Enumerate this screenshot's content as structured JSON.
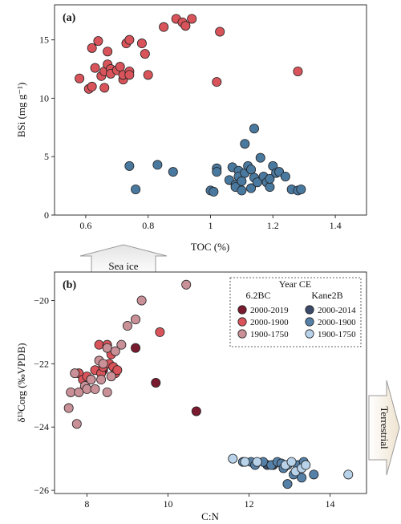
{
  "chart_data": [
    {
      "type": "scatter",
      "panel_label": "(a)",
      "xlabel": "TOC (%)",
      "ylabel": "BSi (mg g⁻¹)",
      "xlim": [
        0.5,
        1.5
      ],
      "ylim": [
        0,
        18
      ],
      "xticks": [
        "0.6",
        "0.8",
        "1",
        "1.2",
        "1.4"
      ],
      "yticks": [
        "0",
        "5",
        "10",
        "15"
      ],
      "arrow_label": "Sea ice",
      "series": [
        {
          "color": "#d9545a",
          "points": [
            [
              0.58,
              11.7
            ],
            [
              0.61,
              10.8
            ],
            [
              0.62,
              14.3
            ],
            [
              0.62,
              11.0
            ],
            [
              0.64,
              14.9
            ],
            [
              0.63,
              12.6
            ],
            [
              0.65,
              11.9
            ],
            [
              0.66,
              12.3
            ],
            [
              0.66,
              10.9
            ],
            [
              0.67,
              14.0
            ],
            [
              0.67,
              12.9
            ],
            [
              0.68,
              12.5
            ],
            [
              0.68,
              12.1
            ],
            [
              0.7,
              12.4
            ],
            [
              0.71,
              12.7
            ],
            [
              0.72,
              11.6
            ],
            [
              0.72,
              12.0
            ],
            [
              0.73,
              14.7
            ],
            [
              0.74,
              15.0
            ],
            [
              0.74,
              12.3
            ],
            [
              0.74,
              12.0
            ],
            [
              0.78,
              14.7
            ],
            [
              0.79,
              13.8
            ],
            [
              0.8,
              12.0
            ],
            [
              0.85,
              16.1
            ],
            [
              0.89,
              16.8
            ],
            [
              0.91,
              16.5
            ],
            [
              0.92,
              16.2
            ],
            [
              0.94,
              16.8
            ],
            [
              1.02,
              11.4
            ],
            [
              1.03,
              15.7
            ],
            [
              1.28,
              12.3
            ]
          ]
        },
        {
          "color": "#4a79a0",
          "points": [
            [
              0.74,
              4.2
            ],
            [
              0.76,
              2.2
            ],
            [
              0.83,
              4.3
            ],
            [
              0.88,
              3.7
            ],
            [
              1.0,
              2.1
            ],
            [
              1.01,
              2.0
            ],
            [
              1.02,
              4.0
            ],
            [
              1.02,
              3.7
            ],
            [
              1.06,
              3.0
            ],
            [
              1.07,
              4.1
            ],
            [
              1.08,
              2.6
            ],
            [
              1.08,
              2.4
            ],
            [
              1.09,
              3.8
            ],
            [
              1.09,
              3.3
            ],
            [
              1.1,
              2.1
            ],
            [
              1.1,
              2.9
            ],
            [
              1.11,
              6.1
            ],
            [
              1.11,
              3.6
            ],
            [
              1.12,
              4.2
            ],
            [
              1.13,
              2.3
            ],
            [
              1.13,
              3.9
            ],
            [
              1.14,
              7.4
            ],
            [
              1.14,
              3.2
            ],
            [
              1.15,
              2.8
            ],
            [
              1.16,
              4.9
            ],
            [
              1.17,
              3.3
            ],
            [
              1.18,
              2.8
            ],
            [
              1.19,
              2.4
            ],
            [
              1.19,
              3.1
            ],
            [
              1.2,
              4.2
            ],
            [
              1.21,
              3.6
            ],
            [
              1.22,
              3.7
            ],
            [
              1.24,
              3.3
            ],
            [
              1.26,
              2.2
            ],
            [
              1.28,
              2.1
            ],
            [
              1.29,
              2.2
            ]
          ]
        }
      ]
    },
    {
      "type": "scatter",
      "panel_label": "(b)",
      "xlabel": "C:N",
      "ylabel": "δ¹³Corg (‰VPDB)",
      "xlim": [
        7.2,
        14.9
      ],
      "ylim": [
        -26.1,
        -19.1
      ],
      "xticks": [
        "8",
        "10",
        "12",
        "14"
      ],
      "yticks": [
        "−20",
        "−22",
        "−24",
        "−26"
      ],
      "arrow_label": "Terrestrial",
      "legend": {
        "title": "Year CE",
        "groups": [
          {
            "name": "6.2BC",
            "entries": [
              {
                "label": "2000-2019",
                "color": "#7a1a2e"
              },
              {
                "label": "2000-1900",
                "color": "#d9545a"
              },
              {
                "label": "1900-1750",
                "color": "#c99097"
              }
            ]
          },
          {
            "name": "Kane2B",
            "entries": [
              {
                "label": "2000-2014",
                "color": "#3a4a68"
              },
              {
                "label": "2000-1900",
                "color": "#5580a8"
              },
              {
                "label": "1900-1750",
                "color": "#b8d2ea"
              }
            ]
          }
        ]
      },
      "series": [
        {
          "label": "6.2BC 2000-2019",
          "color": "#7a1a2e",
          "points": [
            [
              8.4,
              -22.2
            ],
            [
              9.2,
              -21.5
            ],
            [
              9.7,
              -22.6
            ],
            [
              10.7,
              -23.5
            ]
          ]
        },
        {
          "label": "6.2BC 2000-1900",
          "color": "#d9545a",
          "points": [
            [
              7.8,
              -22.3
            ],
            [
              7.9,
              -22.5
            ],
            [
              8.0,
              -22.4
            ],
            [
              8.1,
              -22.5
            ],
            [
              8.2,
              -22.2
            ],
            [
              8.3,
              -21.4
            ],
            [
              8.35,
              -22.3
            ],
            [
              8.4,
              -22.1
            ],
            [
              8.5,
              -21.4
            ],
            [
              8.55,
              -22.0
            ],
            [
              8.6,
              -21.7
            ],
            [
              8.65,
              -22.1
            ],
            [
              8.7,
              -22.3
            ],
            [
              8.75,
              -22.2
            ],
            [
              9.8,
              -21.0
            ]
          ]
        },
        {
          "label": "6.2BC 1900-1750",
          "color": "#c99097",
          "points": [
            [
              7.55,
              -23.4
            ],
            [
              7.6,
              -22.9
            ],
            [
              7.7,
              -22.3
            ],
            [
              7.75,
              -23.9
            ],
            [
              7.8,
              -22.9
            ],
            [
              7.95,
              -22.7
            ],
            [
              8.0,
              -22.8
            ],
            [
              8.1,
              -22.5
            ],
            [
              8.2,
              -22.8
            ],
            [
              8.3,
              -21.9
            ],
            [
              8.35,
              -22.5
            ],
            [
              8.4,
              -22.0
            ],
            [
              8.5,
              -22.9
            ],
            [
              8.5,
              -21.5
            ],
            [
              8.6,
              -22.4
            ],
            [
              8.7,
              -21.6
            ],
            [
              8.85,
              -21.4
            ],
            [
              9.0,
              -20.8
            ],
            [
              9.2,
              -20.6
            ],
            [
              9.35,
              -20.0
            ],
            [
              10.45,
              -19.5
            ]
          ]
        },
        {
          "label": "Kane2B 2000-2014",
          "color": "#3a4a68",
          "points": [
            [
              12.45,
              -25.2
            ],
            [
              12.6,
              -25.2
            ]
          ]
        },
        {
          "label": "Kane2B 2000-1900",
          "color": "#5580a8",
          "points": [
            [
              11.85,
              -25.1
            ],
            [
              12.05,
              -25.1
            ],
            [
              12.15,
              -25.2
            ],
            [
              12.35,
              -25.1
            ],
            [
              12.55,
              -25.2
            ],
            [
              12.7,
              -25.1
            ],
            [
              12.8,
              -25.15
            ],
            [
              12.85,
              -25.3
            ],
            [
              12.95,
              -25.2
            ],
            [
              12.95,
              -25.8
            ],
            [
              13.1,
              -25.5
            ],
            [
              13.2,
              -25.2
            ],
            [
              13.3,
              -25.6
            ],
            [
              13.35,
              -25.1
            ],
            [
              13.6,
              -25.5
            ]
          ]
        },
        {
          "label": "Kane2B 1900-1750",
          "color": "#b8d2ea",
          "points": [
            [
              11.6,
              -25.0
            ],
            [
              11.9,
              -25.1
            ],
            [
              12.2,
              -25.1
            ],
            [
              12.9,
              -25.2
            ],
            [
              13.05,
              -25.1
            ],
            [
              13.15,
              -25.4
            ],
            [
              13.3,
              -25.3
            ],
            [
              13.4,
              -25.2
            ],
            [
              14.45,
              -25.5
            ]
          ]
        }
      ]
    }
  ]
}
